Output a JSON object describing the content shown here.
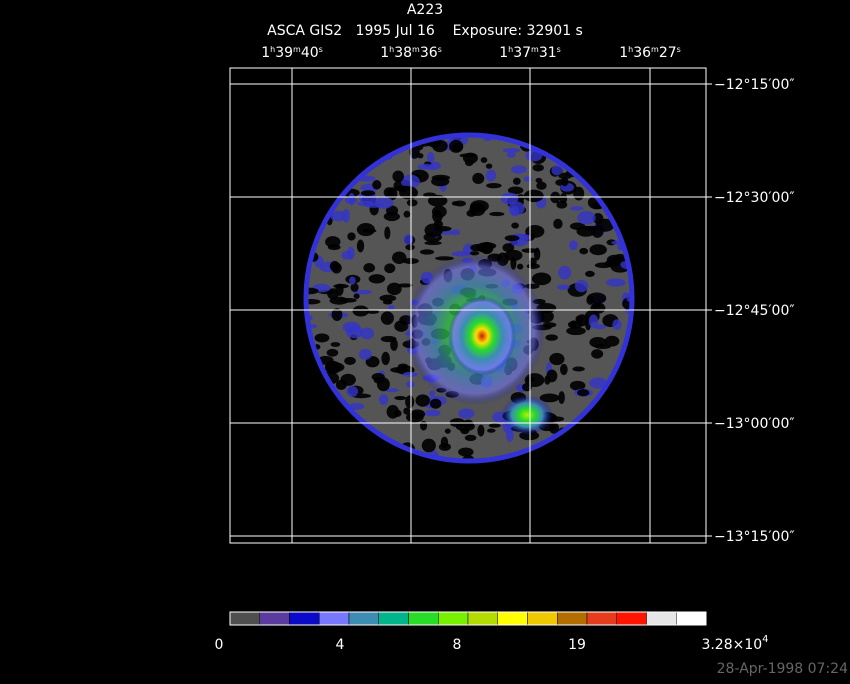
{
  "header": {
    "title": "A223",
    "subtitle": "ASCA GIS2   1995 Jul 16    Exposure: 32901 s"
  },
  "ra_labels": [
    [
      "1",
      "h",
      "39",
      "m",
      "40",
      "s"
    ],
    [
      "1",
      "h",
      "38",
      "m",
      "36",
      "s"
    ],
    [
      "1",
      "h",
      "37",
      "m",
      "31",
      "s"
    ],
    [
      "1",
      "h",
      "36",
      "m",
      "27",
      "s"
    ]
  ],
  "dec_labels": [
    "−12°15′00″",
    "−12°30′00″",
    "−12°45′00″",
    "−13°00′00″",
    "−13°15′00″"
  ],
  "colorbar": {
    "colors": [
      "#4f4f4f",
      "#5a3ca0",
      "#0a0ac8",
      "#7878ff",
      "#3c8cb4",
      "#00b48c",
      "#28dc28",
      "#78f000",
      "#b4dc00",
      "#ffff00",
      "#f0c800",
      "#b46e00",
      "#e63c1e",
      "#ff1400",
      "#e6e6e6",
      "#ffffff"
    ],
    "labels": [
      [
        "0"
      ],
      [
        "4"
      ],
      [
        "8"
      ],
      [
        "19"
      ],
      [
        "3.28×10",
        "4"
      ]
    ]
  },
  "timestamp": "28-Apr-1998 07:24"
}
